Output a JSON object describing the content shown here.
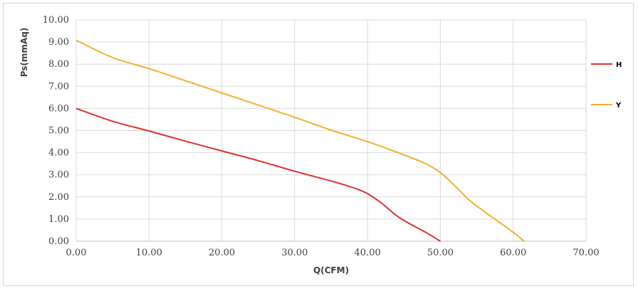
{
  "chart_data": {
    "type": "line",
    "title": "",
    "xlabel": "Q(CFM)",
    "ylabel": "Ps(mmAq)",
    "xlim": [
      0,
      70
    ],
    "ylim": [
      0,
      10
    ],
    "x_ticks": [
      "0.00",
      "10.00",
      "20.00",
      "30.00",
      "40.00",
      "50.00",
      "60.00",
      "70.00"
    ],
    "y_ticks": [
      "0.00",
      "1.00",
      "2.00",
      "3.00",
      "4.00",
      "5.00",
      "6.00",
      "7.00",
      "8.00",
      "9.00",
      "10.00"
    ],
    "grid": true,
    "legend_position": "right",
    "series": [
      {
        "name": "H",
        "color": "#e03030",
        "points": [
          [
            0,
            6.0
          ],
          [
            5,
            5.42
          ],
          [
            10,
            4.98
          ],
          [
            15,
            4.52
          ],
          [
            20,
            4.08
          ],
          [
            25,
            3.64
          ],
          [
            30,
            3.16
          ],
          [
            35,
            2.72
          ],
          [
            38,
            2.42
          ],
          [
            40,
            2.15
          ],
          [
            42,
            1.7
          ],
          [
            44,
            1.15
          ],
          [
            46,
            0.75
          ],
          [
            48,
            0.4
          ],
          [
            50,
            0.0
          ]
        ]
      },
      {
        "name": "Y",
        "color": "#f0b030",
        "points": [
          [
            0,
            9.08
          ],
          [
            5,
            8.3
          ],
          [
            10,
            7.8
          ],
          [
            15,
            7.25
          ],
          [
            20,
            6.7
          ],
          [
            25,
            6.15
          ],
          [
            30,
            5.6
          ],
          [
            35,
            5.02
          ],
          [
            40,
            4.5
          ],
          [
            45,
            3.9
          ],
          [
            48,
            3.5
          ],
          [
            50,
            3.1
          ],
          [
            52,
            2.5
          ],
          [
            54,
            1.85
          ],
          [
            56,
            1.35
          ],
          [
            58,
            0.88
          ],
          [
            60,
            0.4
          ],
          [
            61.5,
            0.0
          ]
        ]
      }
    ]
  }
}
